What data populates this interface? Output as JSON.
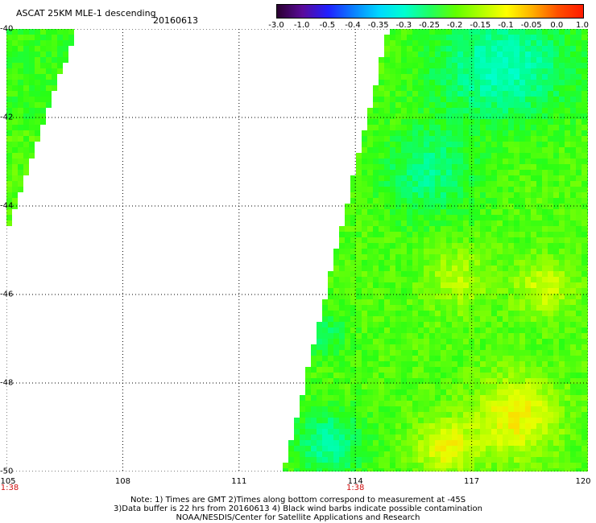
{
  "header": {
    "title": "ASCAT 25KM MLE-1 descending",
    "date": "20160613"
  },
  "colorbar": {
    "labels": [
      "-3.0",
      "-1.0",
      "-0.5",
      "-0.4",
      "-0.35",
      "-0.3",
      "-0.25",
      "-0.2",
      "-0.15",
      "-0.1",
      "-0.05",
      "0.0",
      "1.0"
    ],
    "colors": [
      "#2a0030",
      "#5a0a9a",
      "#2020ff",
      "#0a80ff",
      "#00d8ff",
      "#00ffd0",
      "#20ff60",
      "#60ff00",
      "#b0ff00",
      "#ffff00",
      "#ffb000",
      "#ff5000",
      "#ff1a00"
    ]
  },
  "map": {
    "lat_labels": [
      "-40",
      "-42",
      "-44",
      "-46",
      "-48",
      "-50"
    ],
    "lon_labels": [
      "105",
      "108",
      "111",
      "114",
      "117",
      "120"
    ],
    "time_labels": [
      {
        "lon": 105,
        "text": "1:38"
      },
      {
        "lon": 114,
        "text": "1:38"
      }
    ],
    "lat_range": [
      -50,
      -40
    ],
    "lon_range": [
      105,
      120
    ]
  },
  "notes": {
    "line1": "Note: 1) Times are GMT 2)Times along bottom correspond to measurement at -45S",
    "line2": "3)Data buffer is 22 hrs from 20160613 4) Black wind barbs indicate possible contamination",
    "line3": "NOAA/NESDIS/Center for Satellite Applications and Research"
  }
}
